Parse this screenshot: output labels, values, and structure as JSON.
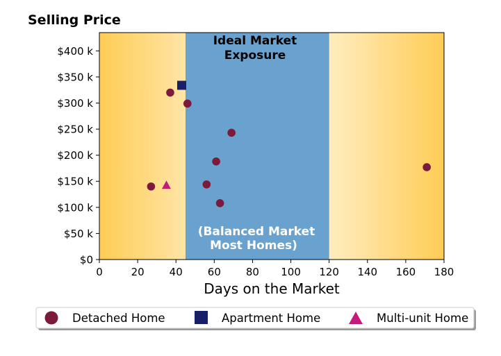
{
  "chart_data": {
    "type": "scatter",
    "title": "",
    "ylabel": "Selling Price",
    "xlabel": "Days on the Market",
    "xlim": [
      0,
      180
    ],
    "ylim": [
      0,
      435000
    ],
    "x_ticks": [
      0,
      20,
      40,
      60,
      80,
      100,
      120,
      140,
      160,
      180
    ],
    "x_tick_labels": [
      "0",
      "20",
      "40",
      "60",
      "80",
      "100",
      "120",
      "140",
      "160",
      "180"
    ],
    "y_ticks": [
      0,
      50000,
      100000,
      150000,
      200000,
      250000,
      300000,
      350000,
      400000
    ],
    "y_tick_labels": [
      "$0",
      "$50 k",
      "$100 k",
      "$150 k",
      "$200 k",
      "$250 k",
      "$300 k",
      "$350 k",
      "$400 k"
    ],
    "grid": false,
    "background_gradient": {
      "edge_color": "#ffcc55",
      "center_color": "#fffdf6"
    },
    "shaded_band": {
      "x_range": [
        45,
        120
      ],
      "color": "#6aa2cf",
      "top_label_lines": [
        "Ideal Market",
        "Exposure"
      ],
      "bottom_label_lines": [
        "(Balanced Market",
        "Most Homes)"
      ]
    },
    "legend_position": "below",
    "series": [
      {
        "name": "Detached Home",
        "marker": "circle",
        "color": "#7b1a3a",
        "points": [
          {
            "x": 27,
            "y": 140000
          },
          {
            "x": 37,
            "y": 320000
          },
          {
            "x": 46,
            "y": 299000
          },
          {
            "x": 56,
            "y": 144000
          },
          {
            "x": 61,
            "y": 188000
          },
          {
            "x": 63,
            "y": 108000
          },
          {
            "x": 69,
            "y": 243000
          },
          {
            "x": 171,
            "y": 177000
          }
        ]
      },
      {
        "name": "Apartment Home",
        "marker": "square",
        "color": "#172066",
        "points": [
          {
            "x": 43,
            "y": 334000
          }
        ]
      },
      {
        "name": "Multi-unit Home",
        "marker": "triangle",
        "color": "#c41a7c",
        "points": [
          {
            "x": 35,
            "y": 142000
          }
        ]
      }
    ]
  }
}
